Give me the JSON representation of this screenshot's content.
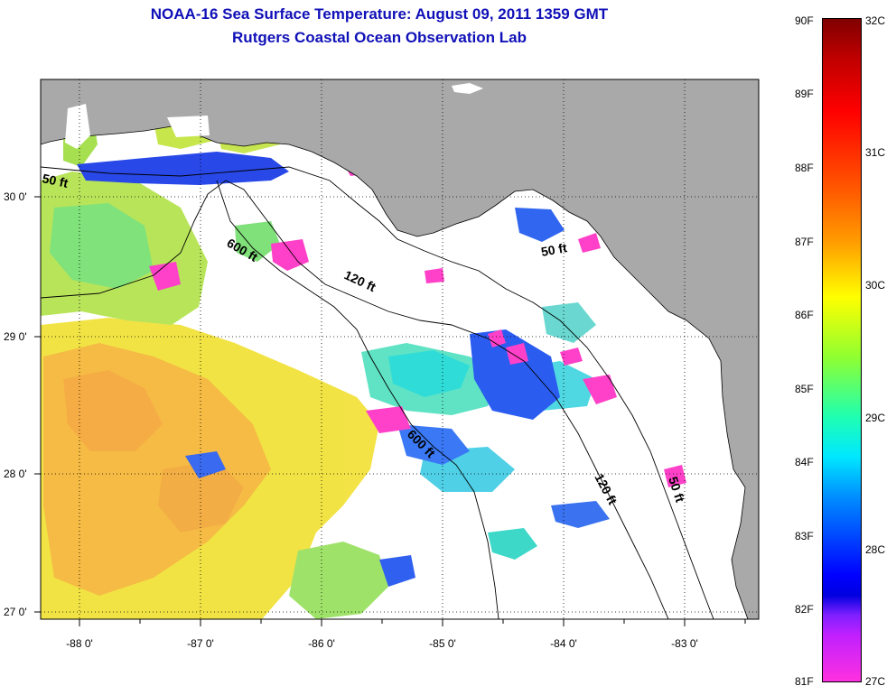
{
  "header": {
    "title": "NOAA-16 Sea Surface Temperature:  August 09, 2011 1359 GMT",
    "subtitle": "Rutgers Coastal Ocean Observation Lab"
  },
  "map": {
    "lat_ticks": [
      "30 0'",
      "29 0'",
      "28 0'",
      "27 0'"
    ],
    "lon_ticks": [
      "-88 0'",
      "-87 0'",
      "-86 0'",
      "-85 0'",
      "-84 0'",
      "-83 0'"
    ],
    "contours": [
      {
        "label": "50 ft"
      },
      {
        "label": "600 ft"
      },
      {
        "label": "120 ft"
      },
      {
        "label": "50 ft"
      },
      {
        "label": "600 ft"
      },
      {
        "label": "120 ft"
      },
      {
        "label": "50 ft"
      }
    ],
    "colors": {
      "land": "#a9a9a9",
      "ocean_nodata": "#ffffff"
    }
  },
  "colorbar": {
    "fahrenheit": [
      "90F",
      "89F",
      "88F",
      "87F",
      "86F",
      "85F",
      "84F",
      "83F",
      "82F",
      "81F"
    ],
    "celsius": [
      "32C",
      "31C",
      "30C",
      "29C",
      "28C",
      "27C"
    ]
  }
}
